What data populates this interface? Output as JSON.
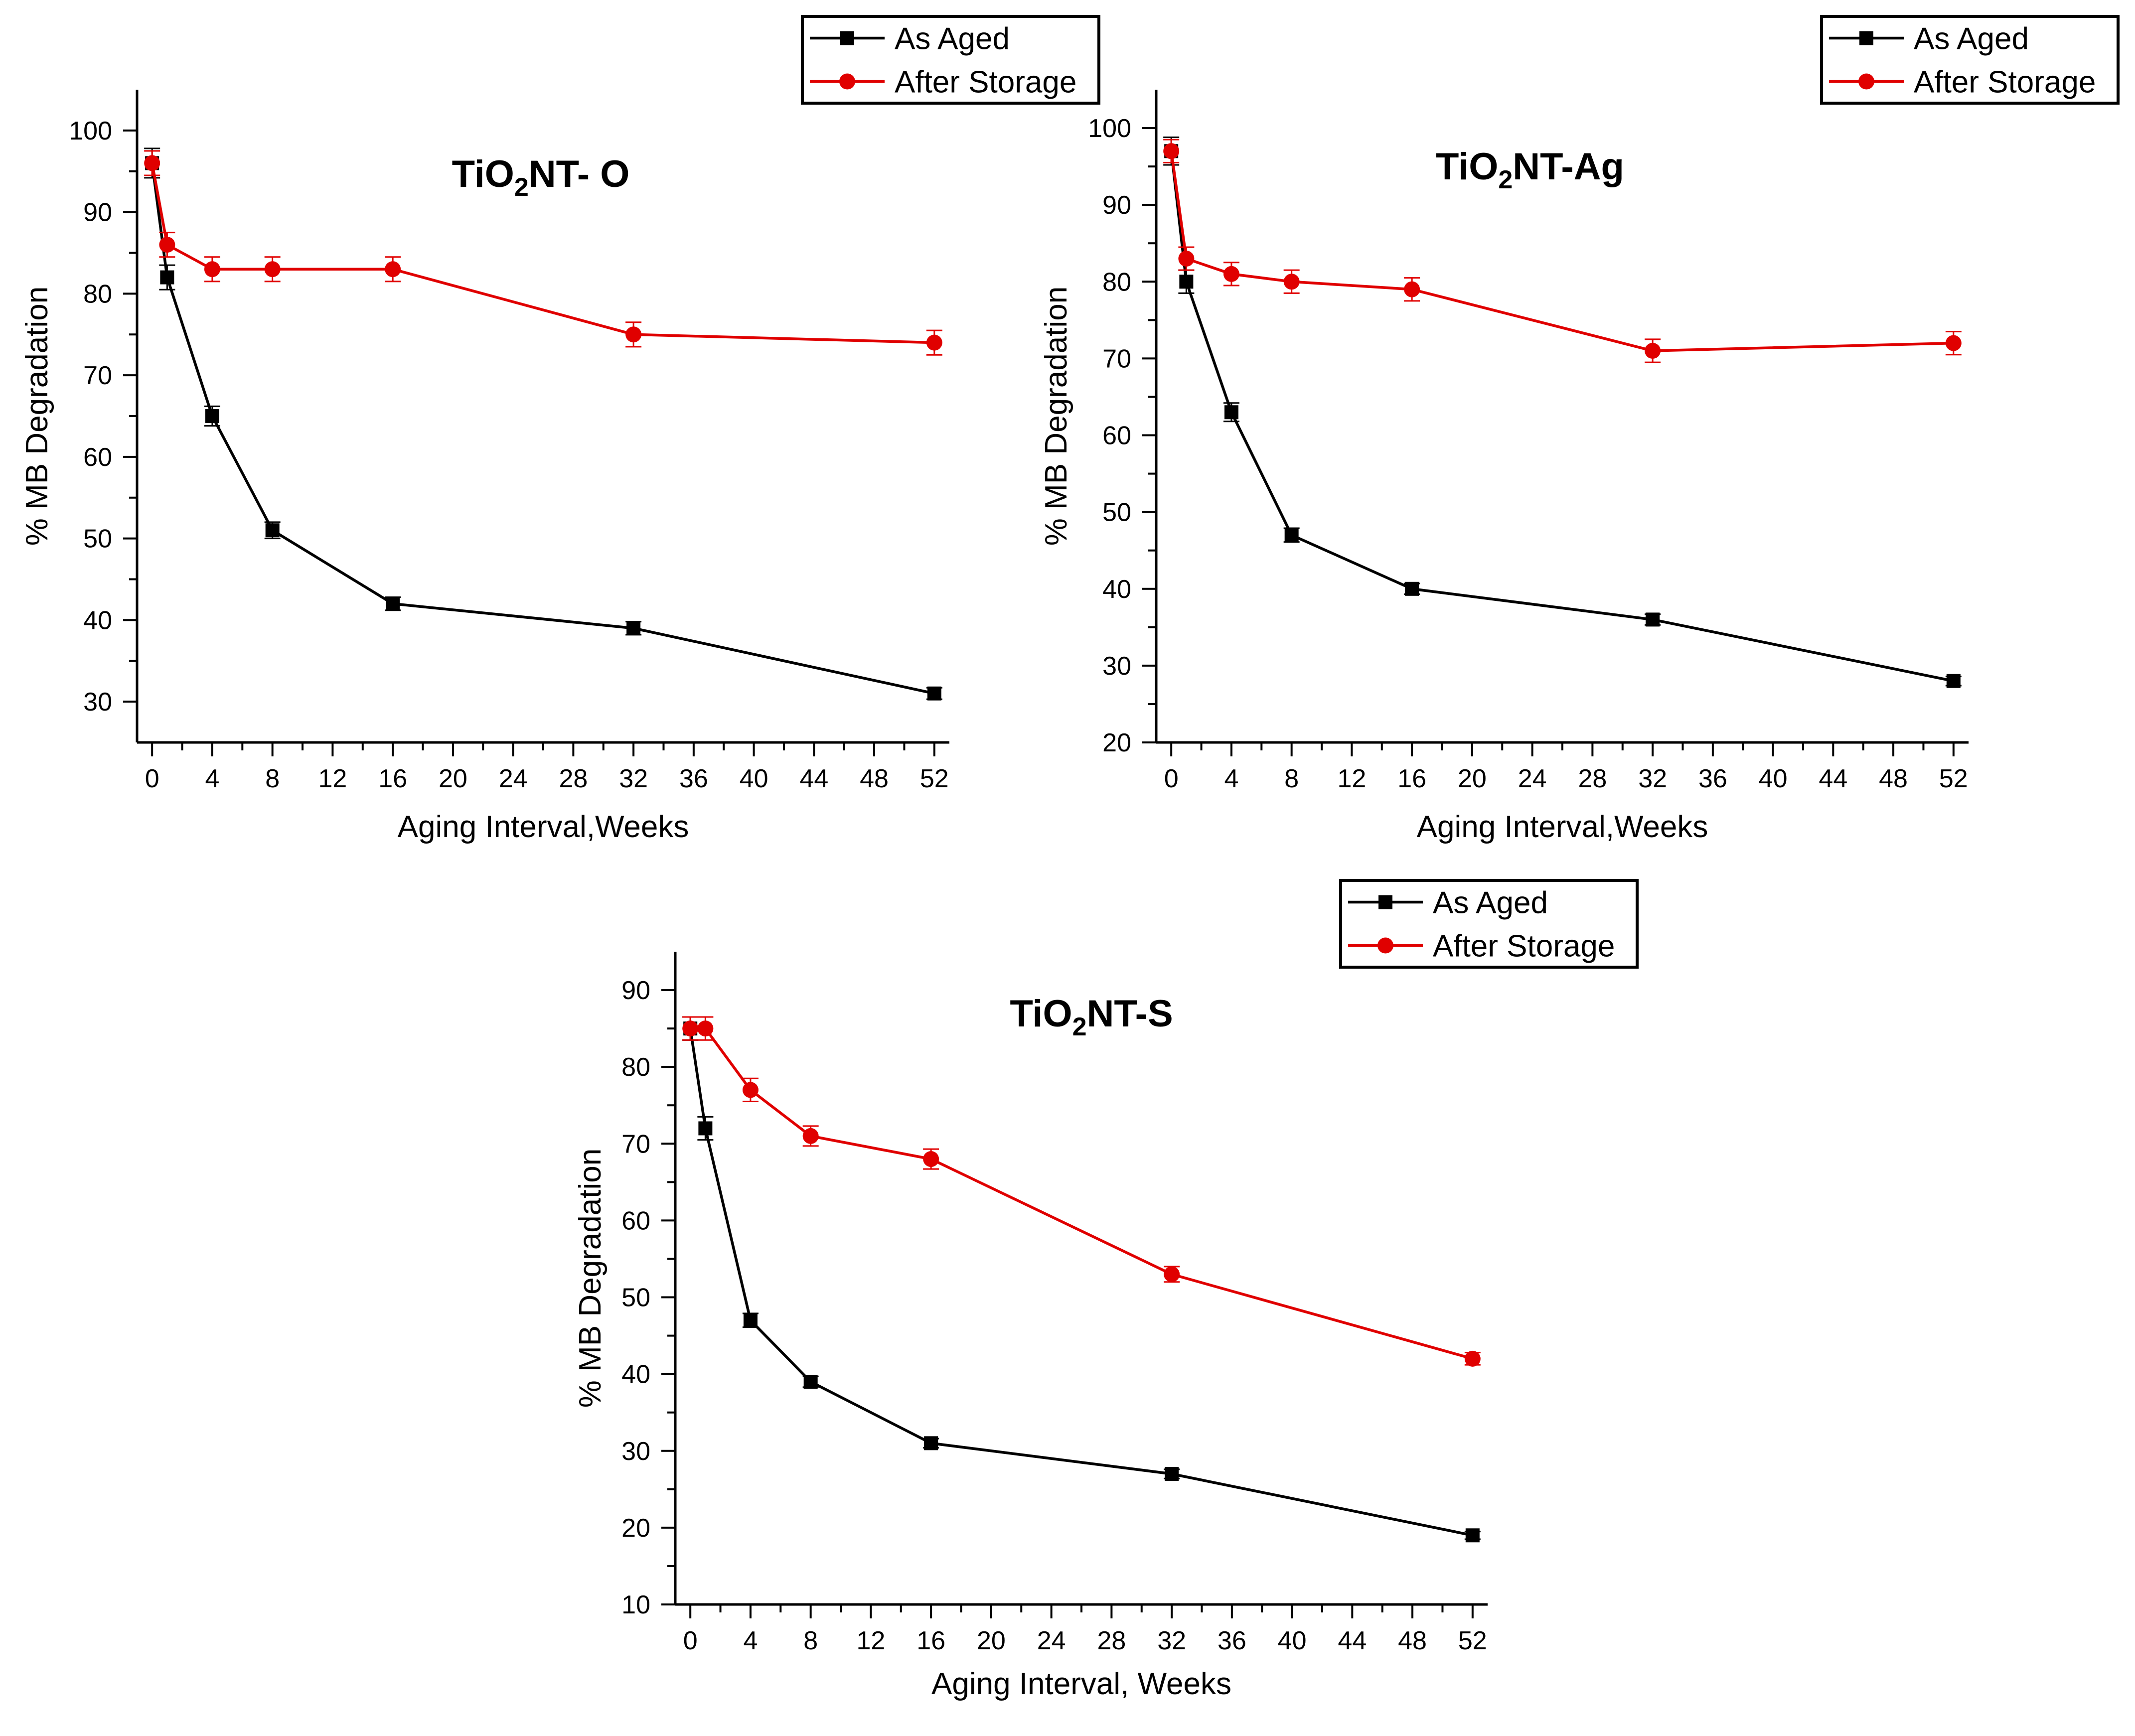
{
  "figure": {
    "colors": {
      "as_aged": "#000000",
      "after_storage": "#e00000",
      "axis": "#000000"
    }
  },
  "chart_data": [
    {
      "type": "line",
      "title": {
        "main": "TiO",
        "sub": "2",
        "rest": "NT- O"
      },
      "xlabel": "Aging Interval,Weeks",
      "ylabel": "% MB Degradation",
      "xlim": [
        -1,
        53
      ],
      "ylim": [
        25,
        105
      ],
      "xticks": [
        0,
        4,
        8,
        12,
        16,
        20,
        24,
        28,
        32,
        36,
        40,
        44,
        48,
        52
      ],
      "yticks": [
        30,
        40,
        50,
        60,
        70,
        80,
        90,
        100
      ],
      "legend_position": "top-right",
      "x": [
        0,
        1,
        4,
        8,
        16,
        32,
        52
      ],
      "series": [
        {
          "name": "As Aged",
          "marker": "square",
          "color": "#000000",
          "values": [
            96,
            82,
            65,
            51,
            42,
            39,
            31
          ],
          "errors": [
            1.8,
            1.5,
            1.2,
            1.0,
            0.8,
            0.8,
            0.7
          ]
        },
        {
          "name": "After Storage",
          "marker": "circle",
          "color": "#e00000",
          "values": [
            96,
            86,
            83,
            83,
            83,
            75,
            74
          ],
          "errors": [
            1.5,
            1.5,
            1.5,
            1.5,
            1.5,
            1.5,
            1.5
          ]
        }
      ]
    },
    {
      "type": "line",
      "title": {
        "main": "TiO",
        "sub": "2",
        "rest": "NT-Ag"
      },
      "xlabel": "Aging Interval,Weeks",
      "ylabel": "% MB Degradation",
      "xlim": [
        -1,
        53
      ],
      "ylim": [
        20,
        105
      ],
      "xticks": [
        0,
        4,
        8,
        12,
        16,
        20,
        24,
        28,
        32,
        36,
        40,
        44,
        48,
        52
      ],
      "yticks": [
        20,
        30,
        40,
        50,
        60,
        70,
        80,
        90,
        100
      ],
      "legend_position": "top-right",
      "x": [
        0,
        1,
        4,
        8,
        16,
        32,
        52
      ],
      "series": [
        {
          "name": "As Aged",
          "marker": "square",
          "color": "#000000",
          "values": [
            97,
            80,
            63,
            47,
            40,
            36,
            28
          ],
          "errors": [
            1.8,
            1.5,
            1.2,
            0.9,
            0.7,
            0.7,
            0.6
          ]
        },
        {
          "name": "After Storage",
          "marker": "circle",
          "color": "#e00000",
          "values": [
            97,
            83,
            81,
            80,
            79,
            71,
            72
          ],
          "errors": [
            1.5,
            1.5,
            1.5,
            1.5,
            1.5,
            1.5,
            1.5
          ]
        }
      ]
    },
    {
      "type": "line",
      "title": {
        "main": "TiO",
        "sub": "2",
        "rest": "NT-S"
      },
      "xlabel": "Aging Interval, Weeks",
      "ylabel": "% MB Degradation",
      "xlim": [
        -1,
        53
      ],
      "ylim": [
        10,
        95
      ],
      "xticks": [
        0,
        4,
        8,
        12,
        16,
        20,
        24,
        28,
        32,
        36,
        40,
        44,
        48,
        52
      ],
      "yticks": [
        10,
        20,
        30,
        40,
        50,
        60,
        70,
        80,
        90
      ],
      "legend_position": "top-right",
      "x": [
        0,
        1,
        4,
        8,
        16,
        32,
        52
      ],
      "series": [
        {
          "name": "As Aged",
          "marker": "square",
          "color": "#000000",
          "values": [
            85,
            72,
            47,
            39,
            31,
            27,
            19
          ],
          "errors": [
            1.5,
            1.5,
            0.9,
            0.7,
            0.6,
            0.6,
            0.5
          ]
        },
        {
          "name": "After Storage",
          "marker": "circle",
          "color": "#e00000",
          "values": [
            85,
            85,
            77,
            71,
            68,
            53,
            42
          ],
          "errors": [
            1.5,
            1.5,
            1.5,
            1.3,
            1.3,
            1.0,
            0.8
          ]
        }
      ]
    }
  ]
}
